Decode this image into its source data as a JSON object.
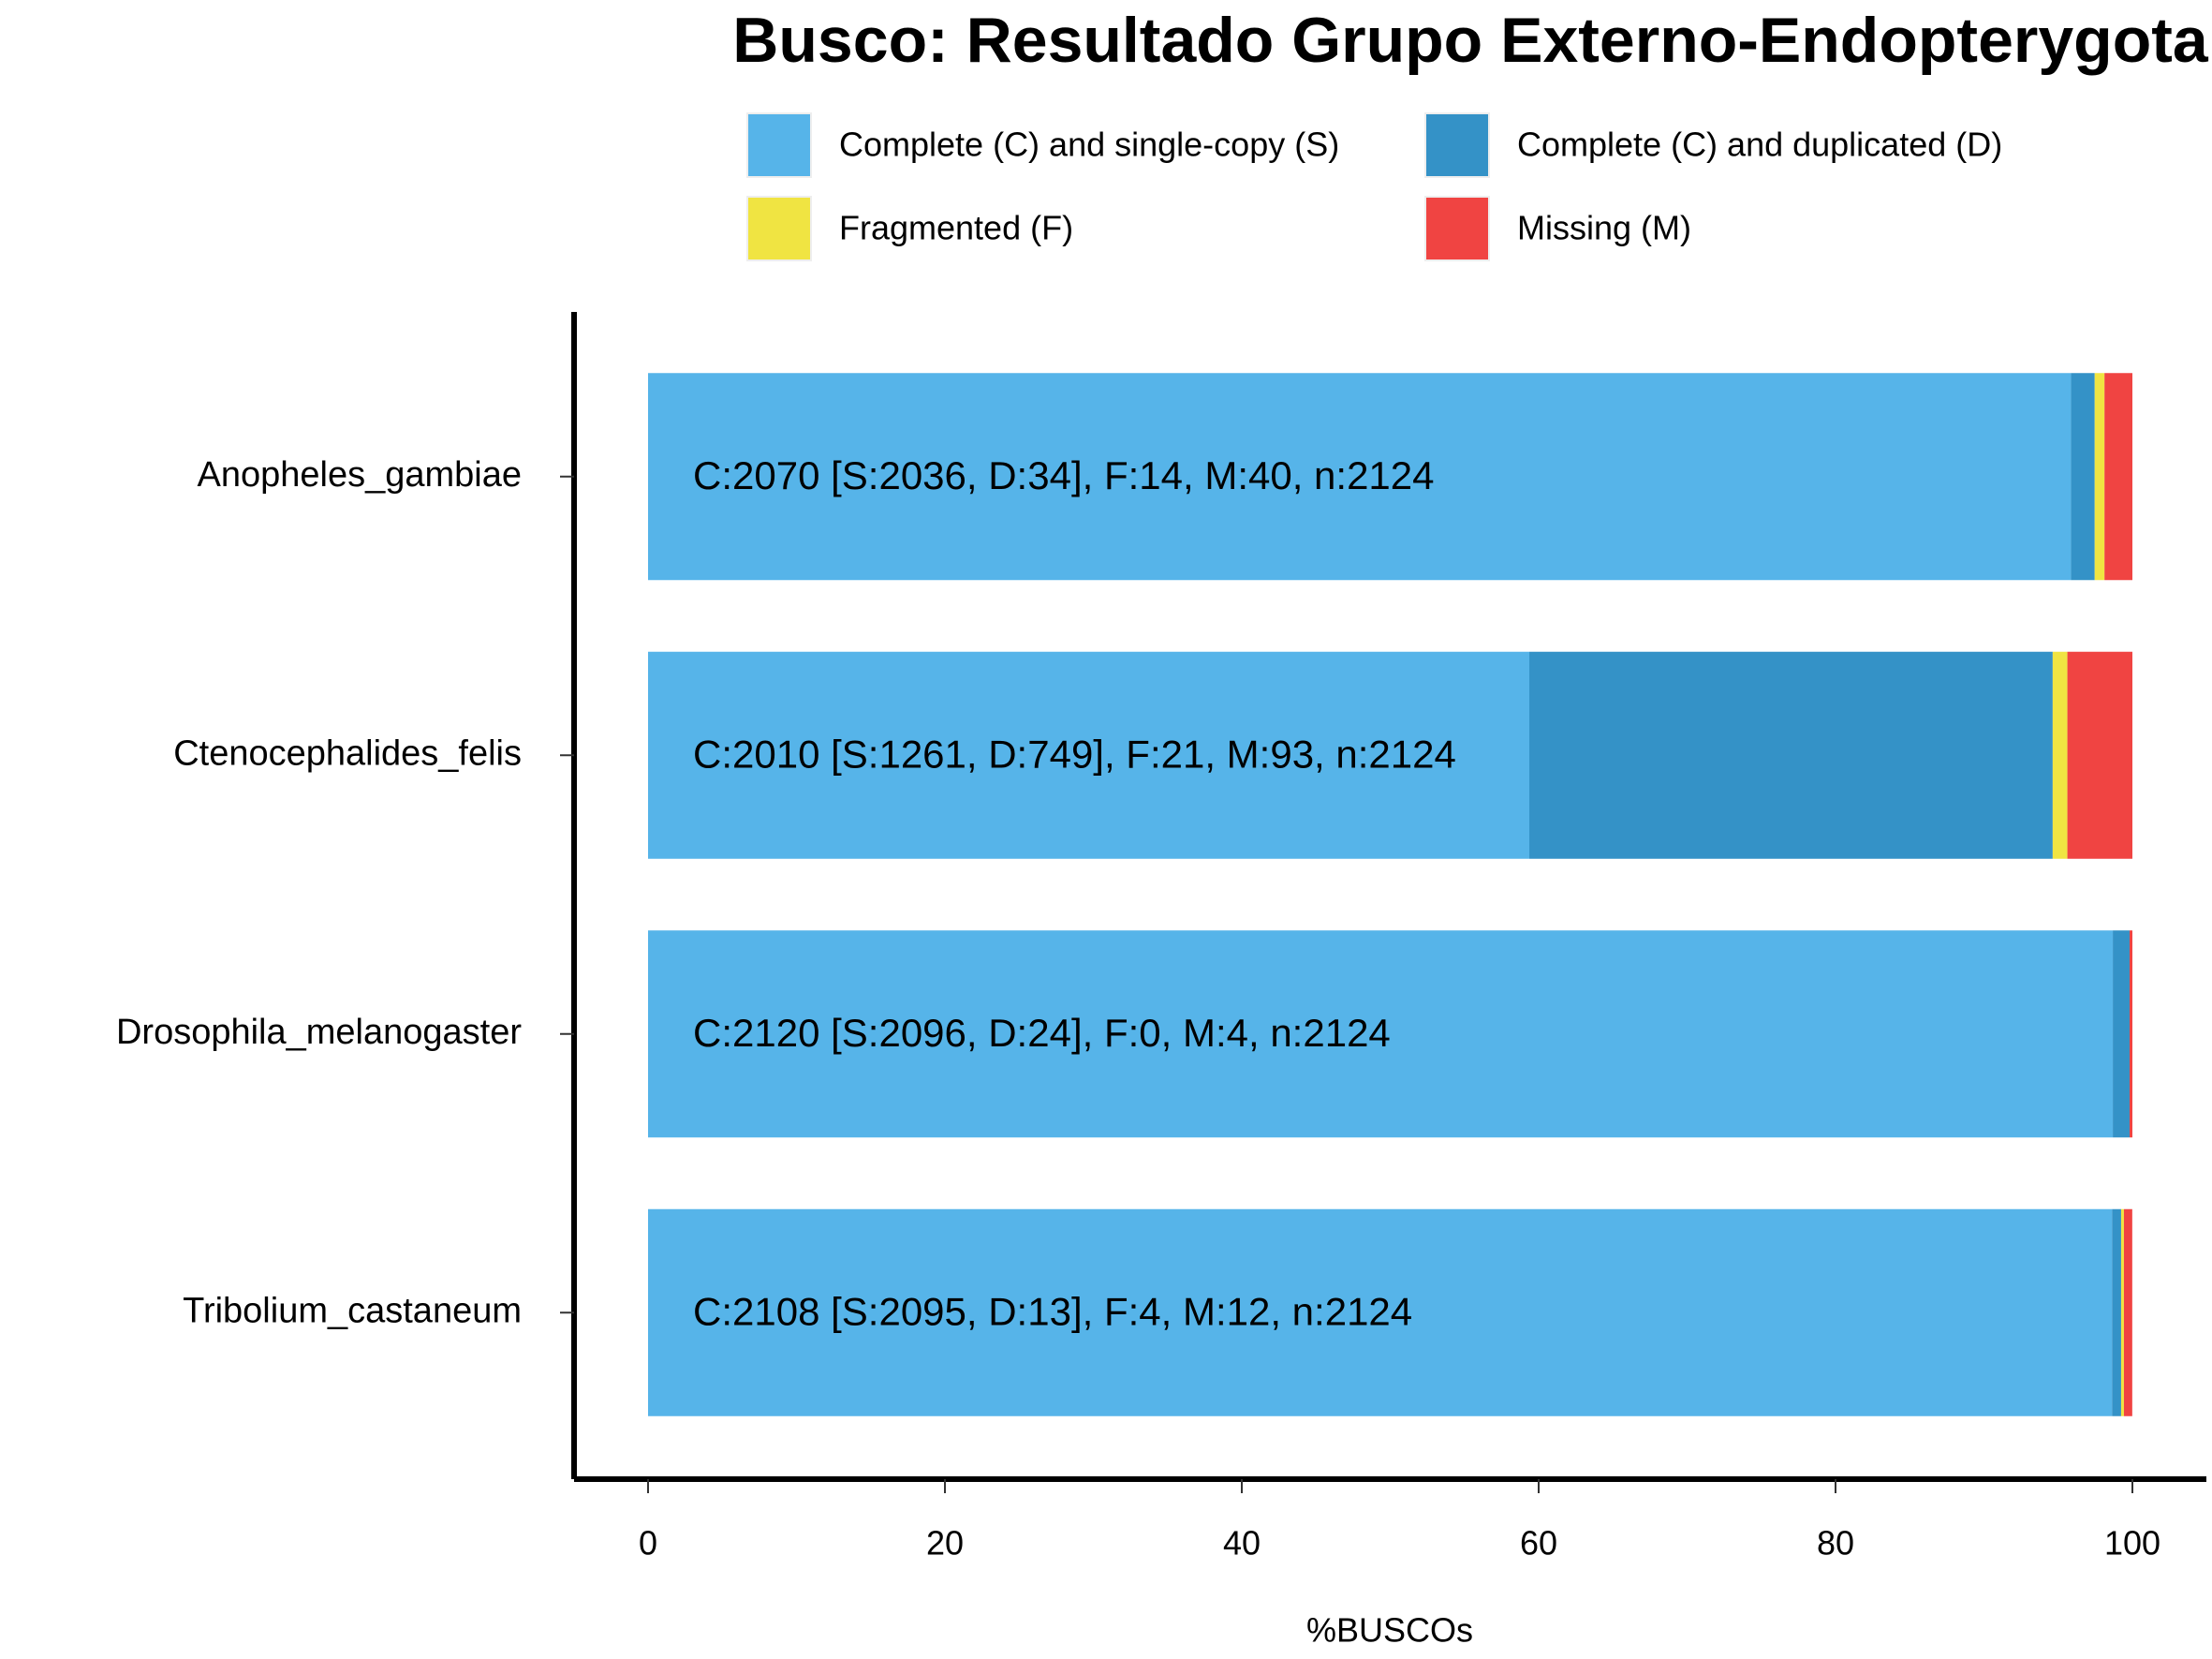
{
  "chart_data": {
    "type": "bar",
    "orientation": "horizontal",
    "stacked": true,
    "title": "Busco: Resultado Grupo Externo-Endopterygota",
    "x_label": "%BUSCOs",
    "categories": [
      "Anopheles_gambiae",
      "Ctenocephalides_felis",
      "Drosophila_melanogaster",
      "Tribolium_castaneum"
    ],
    "series": [
      {
        "name": "Complete (C) and single-copy (S)",
        "color": "#56B4E9",
        "values": [
          95.86,
          59.37,
          98.68,
          98.63
        ]
      },
      {
        "name": "Complete (C) and duplicated (D)",
        "color": "#3492C7",
        "values": [
          1.6,
          35.26,
          1.13,
          0.61
        ]
      },
      {
        "name": "Fragmented (F)",
        "color": "#F0E442",
        "values": [
          0.66,
          0.99,
          0,
          0.19
        ]
      },
      {
        "name": "Missing (M)",
        "color": "#F04442",
        "values": [
          1.88,
          4.38,
          0.19,
          0.56
        ]
      }
    ],
    "annotations": [
      "C:2070 [S:2036, D:34], F:14, M:40, n:2124",
      "C:2010 [S:1261, D:749], F:21, M:93, n:2124",
      "C:2120 [S:2096, D:24], F:0, M:4, n:2124",
      "C:2108 [S:2095, D:13], F:4, M:12, n:2124"
    ],
    "xlim": [
      0,
      100
    ],
    "xticks": [
      0,
      20,
      40,
      60,
      80,
      100
    ],
    "grid": false,
    "legend": "top"
  }
}
